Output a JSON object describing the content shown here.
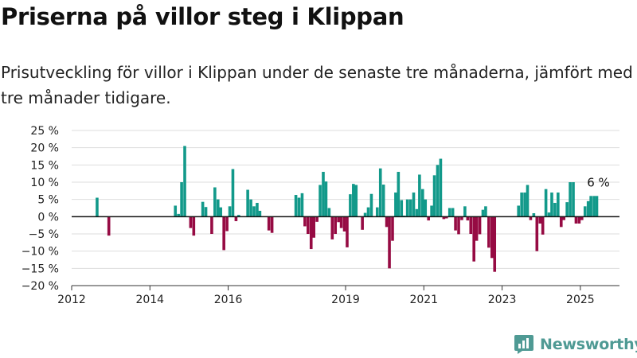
{
  "header": {
    "title": "Priserna på villor steg i Klippan",
    "subtitle": "Prisutveckling för villor i Klippan under de senaste tre månaderna, jämfört med tre månader tidigare."
  },
  "brand": {
    "name": "Newsworthy",
    "icon": "newsworthy-logo-icon",
    "color": "#4f9a94"
  },
  "colors": {
    "positive": "#12998a",
    "negative": "#960b43",
    "grid": "#dddddd",
    "axis": "#333333",
    "zero": "#111111"
  },
  "chart_data": {
    "type": "bar",
    "title": "",
    "xlabel": "",
    "ylabel": "",
    "ylim": [
      -20,
      25
    ],
    "yticks": [
      25,
      20,
      15,
      10,
      5,
      0,
      -5,
      -10,
      -15,
      -20
    ],
    "ytick_labels": [
      "25 %",
      "20 %",
      "15 %",
      "10 %",
      "5 %",
      "0 %",
      "−5 %",
      "−10 %",
      "−15 %",
      "−20 %"
    ],
    "xlim": [
      2012,
      2026
    ],
    "xticks": [
      2012,
      2014,
      2016,
      2019,
      2021,
      2023,
      2025
    ],
    "xtick_labels": [
      "2012",
      "2014",
      "2016",
      "2019",
      "2021",
      "2023",
      "2025"
    ],
    "grid": true,
    "legend": "none",
    "annotation": {
      "text": "6 %",
      "x": 2025.42,
      "y": 6
    },
    "x": [
      2012.65,
      2012.95,
      2014.65,
      2014.73,
      2014.81,
      2014.89,
      2015.04,
      2015.12,
      2015.35,
      2015.43,
      2015.58,
      2015.66,
      2015.74,
      2015.81,
      2015.89,
      2015.97,
      2016.04,
      2016.12,
      2016.2,
      2016.27,
      2016.5,
      2016.58,
      2016.66,
      2016.74,
      2016.81,
      2017.04,
      2017.12,
      2017.73,
      2017.81,
      2017.89,
      2017.96,
      2018.04,
      2018.12,
      2018.19,
      2018.27,
      2018.35,
      2018.43,
      2018.5,
      2018.58,
      2018.66,
      2018.74,
      2018.82,
      2018.89,
      2018.97,
      2019.04,
      2019.12,
      2019.2,
      2019.27,
      2019.43,
      2019.5,
      2019.58,
      2019.66,
      2019.81,
      2019.89,
      2019.97,
      2020.05,
      2020.12,
      2020.2,
      2020.28,
      2020.35,
      2020.43,
      2020.5,
      2020.58,
      2020.66,
      2020.74,
      2020.82,
      2020.89,
      2020.97,
      2021.04,
      2021.12,
      2021.2,
      2021.27,
      2021.35,
      2021.43,
      2021.51,
      2021.58,
      2021.66,
      2021.74,
      2021.81,
      2021.89,
      2021.97,
      2022.05,
      2022.12,
      2022.2,
      2022.28,
      2022.35,
      2022.43,
      2022.51,
      2022.58,
      2022.66,
      2022.74,
      2022.81,
      2023.42,
      2023.5,
      2023.58,
      2023.65,
      2023.73,
      2023.81,
      2023.89,
      2023.97,
      2024.04,
      2024.12,
      2024.2,
      2024.27,
      2024.35,
      2024.43,
      2024.51,
      2024.58,
      2024.66,
      2024.74,
      2024.82,
      2024.89,
      2024.97,
      2025.04,
      2025.12,
      2025.2,
      2025.27,
      2025.35,
      2025.42
    ],
    "values": [
      5.5,
      -5.5,
      3.2,
      0.8,
      10,
      20.5,
      -3.3,
      -5.5,
      4.3,
      2.8,
      -5,
      8.5,
      5,
      2.7,
      -9.7,
      -4.2,
      3,
      13.8,
      -1.3,
      0.5,
      7.8,
      5,
      3,
      4,
      1.7,
      -4,
      -4.7,
      6.3,
      5.5,
      6.8,
      -2.8,
      -5,
      -9.4,
      -6.1,
      -1.5,
      9.2,
      13,
      10.2,
      2.5,
      -6.6,
      -5,
      -1.6,
      -3.3,
      -4.3,
      -8.9,
      6.5,
      9.5,
      9.2,
      -3.8,
      1.1,
      2.7,
      6.6,
      2.7,
      14,
      9.3,
      -3,
      -15,
      -7,
      7,
      13,
      4.8,
      0.3,
      5,
      5,
      7,
      2.2,
      12.2,
      8,
      5,
      -1.1,
      3.2,
      12,
      15,
      16.8,
      -0.7,
      -0.5,
      2.5,
      2.5,
      -4,
      -5.1,
      -1,
      3,
      -1.1,
      -5,
      -13,
      -7,
      -5.1,
      2,
      3,
      -9,
      -12,
      -16,
      3.2,
      7,
      7,
      9.2,
      -1,
      1,
      -10,
      -2,
      -5.2,
      8,
      1.2,
      7,
      4,
      7,
      -3,
      -1,
      4.2,
      10,
      10,
      -2,
      -2,
      -1,
      3,
      4.5,
      6,
      6,
      6
    ]
  }
}
